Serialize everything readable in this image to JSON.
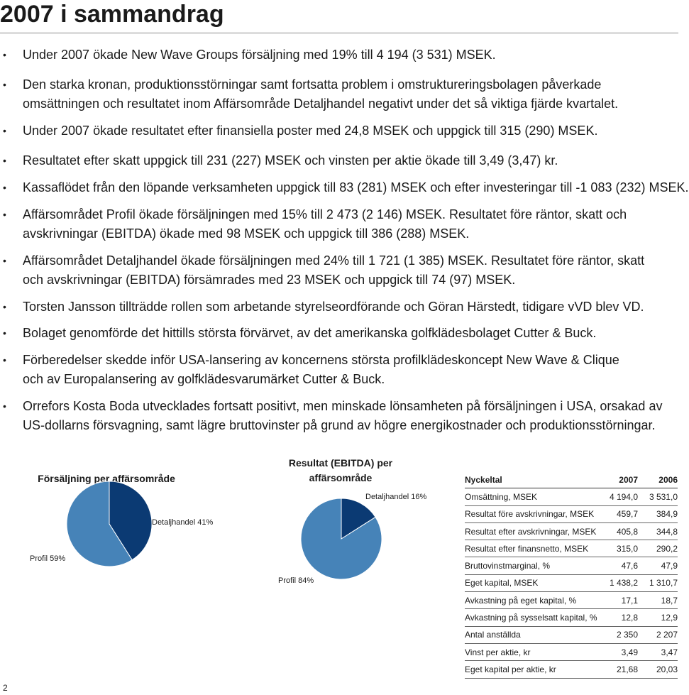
{
  "title": "2007 i sammandrag",
  "bullets": [
    {
      "lines": [
        "Under 2007 ökade New Wave Groups försäljning med 19% till 4 194 (3 531) MSEK."
      ]
    },
    {
      "lines": [
        "Den starka kronan, produktionsstörningar samt fortsatta problem i omstruktureringsbolagen påverkade",
        "omsättningen och resultatet inom Affärsområde Detaljhandel negativt under det så viktiga fjärde kvartalet."
      ]
    },
    {
      "lines": [
        "Under 2007 ökade resultatet efter finansiella poster med 24,8 MSEK och uppgick till 315 (290) MSEK."
      ]
    },
    {
      "lines": [
        "Resultatet efter skatt uppgick till 231 (227) MSEK och vinsten per aktie ökade till 3,49 (3,47) kr."
      ]
    },
    {
      "lines": [
        "Kassaflödet från den löpande verksamheten uppgick till 83 (281) MSEK och efter investeringar till -1 083 (232) MSEK."
      ]
    },
    {
      "lines": [
        "Affärsområdet Profil ökade försäljningen med 15% till 2 473 (2 146) MSEK. Resultatet före räntor, skatt och",
        "avskrivningar (EBITDA) ökade med 98 MSEK och uppgick till 386 (288) MSEK."
      ]
    },
    {
      "lines": [
        "Affärsområdet Detaljhandel ökade försäljningen med 24% till 1 721 (1 385) MSEK. Resultatet före räntor, skatt",
        "och avskrivningar (EBITDA) försämrades med 23 MSEK och uppgick till 74 (97) MSEK."
      ]
    },
    {
      "lines": [
        "Torsten Jansson tillträdde rollen som arbetande styrelseordförande och Göran Härstedt, tidigare vVD blev VD."
      ]
    },
    {
      "lines": [
        "Bolaget genomförde det hittills största förvärvet, av det amerikanska golfklädesbolaget Cutter & Buck."
      ]
    },
    {
      "lines": [
        "Förberedelser skedde inför USA-lansering av koncernens största profilklädeskoncept New Wave & Clique",
        "och av Europalansering av golfklädesvarumärket Cutter & Buck."
      ]
    },
    {
      "lines": [
        "Orrefors Kosta Boda utvecklades fortsatt positivt, men minskade lönsamheten på försäljningen i USA, orsakad av",
        "US-dollarns försvagning, samt lägre bruttovinster på grund av högre energikostnader och produktionsstörningar."
      ]
    }
  ],
  "chart_data": [
    {
      "type": "pie",
      "title": "Försäljning per affärsområde",
      "slices": [
        {
          "label": "Detaljhandel 41%",
          "value": 41,
          "color": "#0b3a73"
        },
        {
          "label": "Profil 59%",
          "value": 59,
          "color": "#4683b8"
        }
      ]
    },
    {
      "type": "pie",
      "title_lines": [
        "Resultat (EBITDA) per",
        "affärsområde"
      ],
      "slices": [
        {
          "label": "Detaljhandel 16%",
          "value": 16,
          "color": "#0b3a73"
        },
        {
          "label": "Profil 84%",
          "value": 84,
          "color": "#4683b8"
        }
      ]
    }
  ],
  "table": {
    "header": [
      "Nyckeltal",
      "2007",
      "2006"
    ],
    "rows": [
      [
        "Omsättning, MSEK",
        "4 194,0",
        "3 531,0"
      ],
      [
        "Resultat före avskrivningar, MSEK",
        "459,7",
        "384,9"
      ],
      [
        "Resultat efter avskrivningar, MSEK",
        "405,8",
        "344,8"
      ],
      [
        "Resultat efter finansnetto, MSEK",
        "315,0",
        "290,2"
      ],
      [
        "Bruttovinstmarginal, %",
        "47,6",
        "47,9"
      ],
      [
        "Eget kapital, MSEK",
        "1 438,2",
        "1 310,7"
      ],
      [
        "Avkastning på eget kapital, %",
        "17,1",
        "18,7"
      ],
      [
        "Avkastning på sysselsatt kapital, %",
        "12,8",
        "12,9"
      ],
      [
        "Antal anställda",
        "2 350",
        "2 207"
      ],
      [
        "Vinst per aktie, kr",
        "3,49",
        "3,47"
      ],
      [
        "Eget kapital per aktie, kr",
        "21,68",
        "20,03"
      ]
    ]
  },
  "page_number": "2"
}
